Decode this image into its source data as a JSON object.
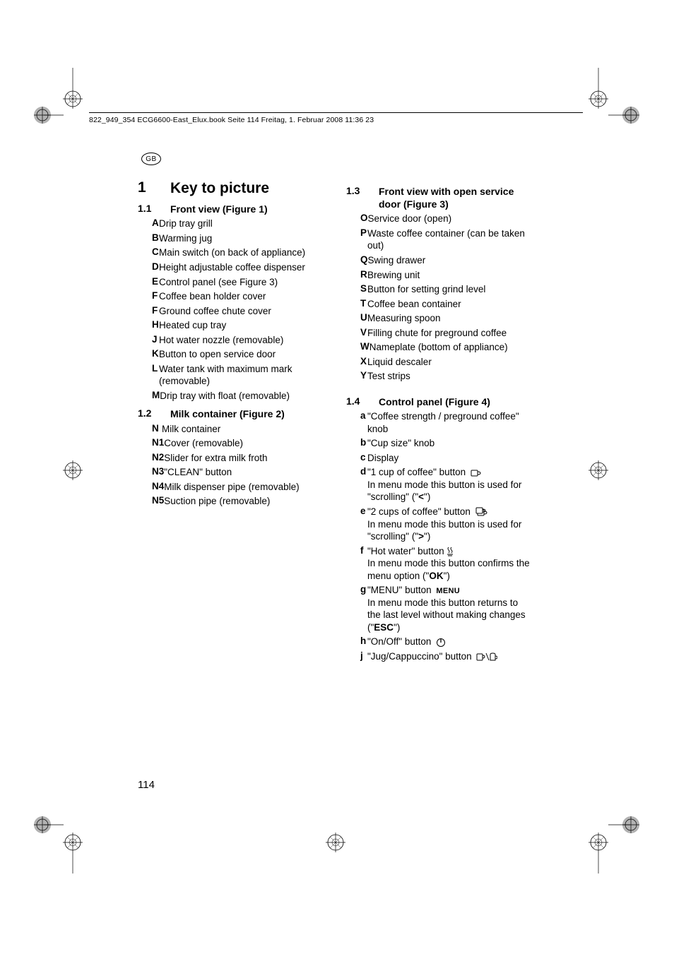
{
  "header_line": "822_949_354 ECG6600-East_Elux.book  Seite 114  Freitag, 1. Februar 2008  11:36 23",
  "language_badge": "GB",
  "page_number": "114",
  "section": {
    "num": "1",
    "title": "Key to picture"
  },
  "left_col": [
    {
      "num": "1.1",
      "title": "Front view (Figure 1)",
      "items": [
        {
          "label": "A",
          "text": "Drip tray grill"
        },
        {
          "label": "B",
          "text": "Warming jug"
        },
        {
          "label": "C",
          "text": "Main switch (on back of appliance)"
        },
        {
          "label": "D",
          "text": "Height adjustable coffee dispenser"
        },
        {
          "label": "E",
          "text": "Control panel (see Figure 3)"
        },
        {
          "label": "F",
          "text": "Coffee bean holder cover"
        },
        {
          "label": "F",
          "text": "Ground coffee chute cover"
        },
        {
          "label": "H",
          "text": "Heated cup tray"
        },
        {
          "label": "J",
          "text": "Hot water nozzle (removable)"
        },
        {
          "label": "K",
          "text": "Button to open service door"
        },
        {
          "label": "L",
          "text": "Water tank with maximum mark (removable)"
        },
        {
          "label": "M",
          "text": "Drip tray with float (removable)"
        }
      ]
    },
    {
      "num": "1.2",
      "title": "Milk container (Figure 2)",
      "wide_labels": true,
      "items": [
        {
          "label": "N",
          "text": "Milk container"
        },
        {
          "label": "N1",
          "text": "Cover (removable)"
        },
        {
          "label": "N2",
          "text": "Slider for extra milk froth"
        },
        {
          "label": "N3",
          "text": "\"CLEAN\" button"
        },
        {
          "label": "N4",
          "text": "Milk dispenser pipe (removable)"
        },
        {
          "label": "N5",
          "text": "Suction pipe (removable)"
        }
      ]
    }
  ],
  "right_col": [
    {
      "num": "1.3",
      "title": "Front view with open service door (Figure 3)",
      "items": [
        {
          "label": "O",
          "text": "Service door (open)"
        },
        {
          "label": "P",
          "text": "Waste coffee container (can be taken out)"
        },
        {
          "label": "Q",
          "text": "Swing drawer"
        },
        {
          "label": "R",
          "text": "Brewing unit"
        },
        {
          "label": "S",
          "text": "Button for setting grind level"
        },
        {
          "label": "T",
          "text": "Coffee bean container"
        },
        {
          "label": "U",
          "text": "Measuring spoon"
        },
        {
          "label": "V",
          "text": "Filling chute for preground coffee"
        },
        {
          "label": "W",
          "text": "Nameplate (bottom of appliance)"
        },
        {
          "label": "X",
          "text": "Liquid descaler"
        },
        {
          "label": "Y",
          "text": "Test strips"
        }
      ]
    },
    {
      "num": "1.4",
      "title": "Control panel (Figure 4)",
      "gap_before": 18,
      "items": [
        {
          "label": "a",
          "text": "\"Coffee strength / preground coffee\" knob"
        },
        {
          "label": "b",
          "text": "\"Cup size\" knob"
        },
        {
          "label": "c",
          "text": "Display"
        },
        {
          "label": "d",
          "icon": "cup1",
          "text_before": "\"1 cup of coffee\" button ",
          "text_after": "In menu mode this button is used for \"scrolling\" (\"",
          "bold_suffix": "<",
          "tail": "\")"
        },
        {
          "label": "e",
          "icon": "cup2",
          "text_before": "\"2 cups of coffee\" button ",
          "text_after": "In menu mode this button is used for \"scrolling\" (\"",
          "bold_suffix": ">",
          "tail": "\")"
        },
        {
          "label": "f",
          "icon": "steam",
          "text_before": "\"Hot water\" button",
          "text_after": "In menu mode this button confirms the menu option (\"",
          "bold_suffix": "OK",
          "tail": "\")"
        },
        {
          "label": "g",
          "icon": "menu",
          "text_before": "\"MENU\" button ",
          "text_after": "In menu mode this button returns to the last level without making changes (\"",
          "bold_suffix": "ESC",
          "tail": "\")"
        },
        {
          "label": "h",
          "icon": "power",
          "text_before": "\"On/Off\" button "
        },
        {
          "label": "j",
          "icon": "jug",
          "text_before": "\"Jug/Cappuccino\" button "
        }
      ]
    }
  ]
}
